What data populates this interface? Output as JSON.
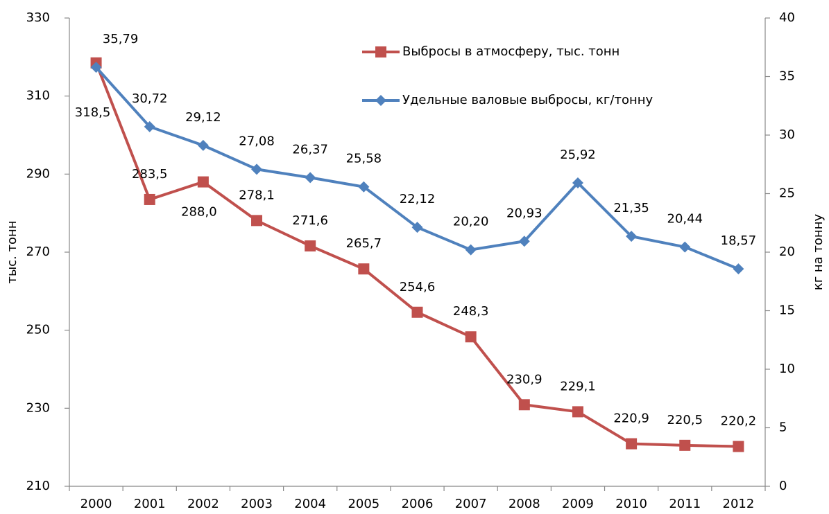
{
  "chart_data": {
    "type": "line",
    "categories": [
      "2000",
      "2001",
      "2002",
      "2003",
      "2004",
      "2005",
      "2006",
      "2007",
      "2008",
      "2009",
      "2010",
      "2011",
      "2012"
    ],
    "ylabel": "тыс. тонн",
    "y2label": "кг на тонну",
    "ylim": [
      210,
      330
    ],
    "yticks": [
      210,
      230,
      250,
      270,
      290,
      310,
      330
    ],
    "y2lim": [
      0,
      40
    ],
    "y2ticks": [
      0,
      5,
      10,
      15,
      20,
      25,
      30,
      35,
      40
    ],
    "legend": "top-right",
    "series": [
      {
        "name": "Выбросы в атмосферу, тыс. тонн",
        "color": "#c0504d",
        "marker": "square",
        "values": [
          318.5,
          283.5,
          288.0,
          278.1,
          271.6,
          265.7,
          254.6,
          248.3,
          230.9,
          229.1,
          220.9,
          220.5,
          220.2
        ],
        "value_labels": [
          "318,5",
          "283,5",
          "288,0",
          "278,1",
          "271,6",
          "265,7",
          "254,6",
          "248,3",
          "230,9",
          "229,1",
          "220,9",
          "220,5",
          "220,2"
        ]
      },
      {
        "name": "Удельные валовые выбросы, кг/тонну",
        "color": "#4f81bd",
        "marker": "diamond",
        "axis": "y2",
        "values": [
          35.79,
          30.72,
          29.12,
          27.08,
          26.37,
          25.58,
          22.12,
          20.2,
          20.93,
          25.92,
          21.35,
          20.44,
          18.57
        ],
        "value_labels": [
          "35,79",
          "30,72",
          "29,12",
          "27,08",
          "26,37",
          "25,58",
          "22,12",
          "20,20",
          "20,93",
          "25,92",
          "21,35",
          "20,44",
          "18,57"
        ]
      }
    ]
  }
}
